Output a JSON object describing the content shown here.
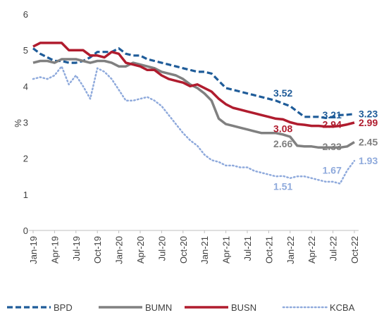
{
  "chart_data": {
    "type": "line",
    "y_label": "%",
    "categories": [
      "Jan-19",
      null,
      null,
      "Apr-19",
      null,
      null,
      "Jul-19",
      null,
      null,
      "Oct-19",
      null,
      null,
      "Jan-20",
      null,
      null,
      "Apr-20",
      null,
      null,
      "Jul-20",
      null,
      null,
      "Oct-20",
      null,
      null,
      "Jan-21",
      null,
      null,
      "Apr-21",
      null,
      null,
      "Jul-21",
      null,
      null,
      "Oct-21",
      null,
      null,
      "Jan-22",
      null,
      null,
      "Apr-22",
      null,
      null,
      "Jul-22",
      null,
      null,
      "Oct-22"
    ],
    "ylim": [
      0,
      6
    ],
    "yticks": [
      0,
      1,
      2,
      3,
      4,
      5,
      6
    ],
    "series": [
      {
        "name": "BPD",
        "color": "#1f5c99",
        "style": "dashed",
        "values": [
          5.05,
          4.9,
          4.8,
          4.7,
          4.7,
          4.65,
          4.65,
          4.7,
          4.8,
          4.95,
          4.95,
          4.95,
          5.05,
          4.9,
          4.85,
          4.85,
          4.75,
          4.7,
          4.65,
          4.6,
          4.55,
          4.5,
          4.45,
          4.4,
          4.4,
          4.35,
          4.15,
          3.95,
          3.9,
          3.85,
          3.8,
          3.75,
          3.7,
          3.65,
          3.6,
          3.52,
          3.45,
          3.3,
          3.15,
          3.15,
          3.15,
          3.12,
          3.15,
          3.2,
          3.21,
          3.23
        ],
        "value_labels": [
          null,
          null,
          null,
          null,
          null,
          null,
          null,
          null,
          null,
          null,
          null,
          null,
          null,
          null,
          null,
          null,
          null,
          null,
          null,
          null,
          null,
          null,
          null,
          null,
          null,
          null,
          null,
          null,
          null,
          null,
          null,
          null,
          null,
          null,
          null,
          "3.52",
          null,
          null,
          null,
          null,
          null,
          null,
          null,
          null,
          "3.21",
          "3.23"
        ]
      },
      {
        "name": "BUMN",
        "color": "#808080",
        "style": "solid",
        "values": [
          4.65,
          4.7,
          4.7,
          4.65,
          4.75,
          4.75,
          4.75,
          4.7,
          4.65,
          4.7,
          4.7,
          4.65,
          4.55,
          4.55,
          4.65,
          4.6,
          4.55,
          4.5,
          4.4,
          4.35,
          4.3,
          4.2,
          4.05,
          3.95,
          3.8,
          3.6,
          3.1,
          2.95,
          2.9,
          2.85,
          2.8,
          2.75,
          2.7,
          2.7,
          2.7,
          2.66,
          2.6,
          2.35,
          2.33,
          2.33,
          2.3,
          2.3,
          2.3,
          2.3,
          2.33,
          2.45
        ],
        "value_labels": [
          null,
          null,
          null,
          null,
          null,
          null,
          null,
          null,
          null,
          null,
          null,
          null,
          null,
          null,
          null,
          null,
          null,
          null,
          null,
          null,
          null,
          null,
          null,
          null,
          null,
          null,
          null,
          null,
          null,
          null,
          null,
          null,
          null,
          null,
          null,
          "2.66",
          null,
          null,
          null,
          null,
          null,
          null,
          null,
          null,
          "2.33",
          "2.45"
        ]
      },
      {
        "name": "BUSN",
        "color": "#b01c2e",
        "style": "solid",
        "values": [
          5.1,
          5.2,
          5.2,
          5.2,
          5.2,
          5.0,
          5.0,
          5.0,
          4.85,
          4.85,
          4.8,
          4.95,
          4.9,
          4.65,
          4.6,
          4.55,
          4.45,
          4.45,
          4.3,
          4.2,
          4.15,
          4.1,
          4.0,
          4.05,
          3.95,
          3.85,
          3.65,
          3.5,
          3.4,
          3.35,
          3.3,
          3.25,
          3.2,
          3.15,
          3.1,
          3.08,
          3.0,
          2.95,
          2.93,
          2.9,
          2.9,
          2.88,
          2.88,
          2.9,
          2.94,
          2.99
        ],
        "value_labels": [
          null,
          null,
          null,
          null,
          null,
          null,
          null,
          null,
          null,
          null,
          null,
          null,
          null,
          null,
          null,
          null,
          null,
          null,
          null,
          null,
          null,
          null,
          null,
          null,
          null,
          null,
          null,
          null,
          null,
          null,
          null,
          null,
          null,
          null,
          null,
          "3.08",
          null,
          null,
          null,
          null,
          null,
          null,
          null,
          null,
          "2.94",
          "2.99"
        ]
      },
      {
        "name": "KCBA",
        "color": "#8faadc",
        "style": "dotted",
        "values": [
          4.2,
          4.25,
          4.2,
          4.3,
          4.55,
          4.05,
          4.3,
          4.0,
          3.65,
          4.5,
          4.4,
          4.2,
          3.9,
          3.6,
          3.6,
          3.65,
          3.7,
          3.6,
          3.45,
          3.2,
          2.95,
          2.7,
          2.5,
          2.35,
          2.1,
          1.95,
          1.9,
          1.8,
          1.8,
          1.75,
          1.75,
          1.65,
          1.6,
          1.55,
          1.5,
          1.51,
          1.45,
          1.5,
          1.5,
          1.45,
          1.4,
          1.35,
          1.35,
          1.3,
          1.67,
          1.93
        ],
        "value_labels": [
          null,
          null,
          null,
          null,
          null,
          null,
          null,
          null,
          null,
          null,
          null,
          null,
          null,
          null,
          null,
          null,
          null,
          null,
          null,
          null,
          null,
          null,
          null,
          null,
          null,
          null,
          null,
          null,
          null,
          null,
          null,
          null,
          null,
          null,
          null,
          "1.51",
          null,
          null,
          null,
          null,
          null,
          null,
          null,
          null,
          "1.67",
          "1.93"
        ]
      }
    ]
  }
}
